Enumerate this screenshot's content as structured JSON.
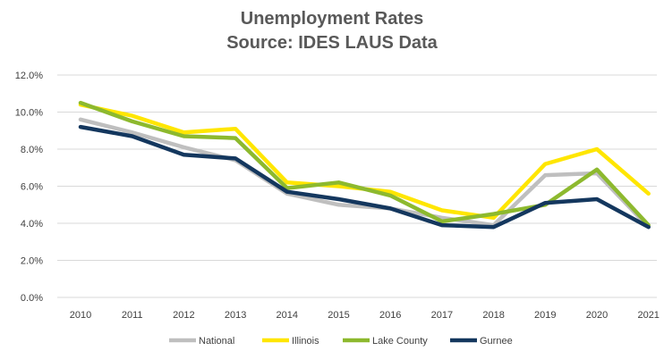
{
  "chart_data": {
    "type": "line",
    "title": "Unemployment Rates",
    "subtitle": "Source: IDES LAUS Data",
    "xlabel": "",
    "ylabel": "",
    "categories": [
      "2010",
      "2011",
      "2012",
      "2013",
      "2014",
      "2015",
      "2016",
      "2017",
      "2018",
      "2019",
      "2020",
      "2021"
    ],
    "ylim": [
      0,
      12
    ],
    "yticks": [
      "0.0%",
      "2.0%",
      "4.0%",
      "6.0%",
      "8.0%",
      "10.0%",
      "12.0%"
    ],
    "grid": true,
    "legend_position": "bottom",
    "series": [
      {
        "name": "National",
        "color": "#BFBFBF",
        "values": [
          9.6,
          8.9,
          8.1,
          7.4,
          5.6,
          5.0,
          4.8,
          4.3,
          3.9,
          6.6,
          6.7,
          3.8
        ]
      },
      {
        "name": "Illinois",
        "color": "#FFE600",
        "values": [
          10.4,
          9.8,
          8.9,
          9.1,
          6.2,
          6.0,
          5.7,
          4.7,
          4.3,
          7.2,
          8.0,
          5.6
        ]
      },
      {
        "name": "Lake County",
        "color": "#8DB92E",
        "values": [
          10.5,
          9.5,
          8.7,
          8.6,
          5.9,
          6.2,
          5.5,
          4.1,
          4.5,
          5.0,
          6.9,
          3.9
        ]
      },
      {
        "name": "Gurnee",
        "color": "#14375E",
        "values": [
          9.2,
          8.7,
          7.7,
          7.5,
          5.7,
          5.3,
          4.8,
          3.9,
          3.8,
          5.1,
          5.3,
          3.8
        ]
      }
    ]
  }
}
